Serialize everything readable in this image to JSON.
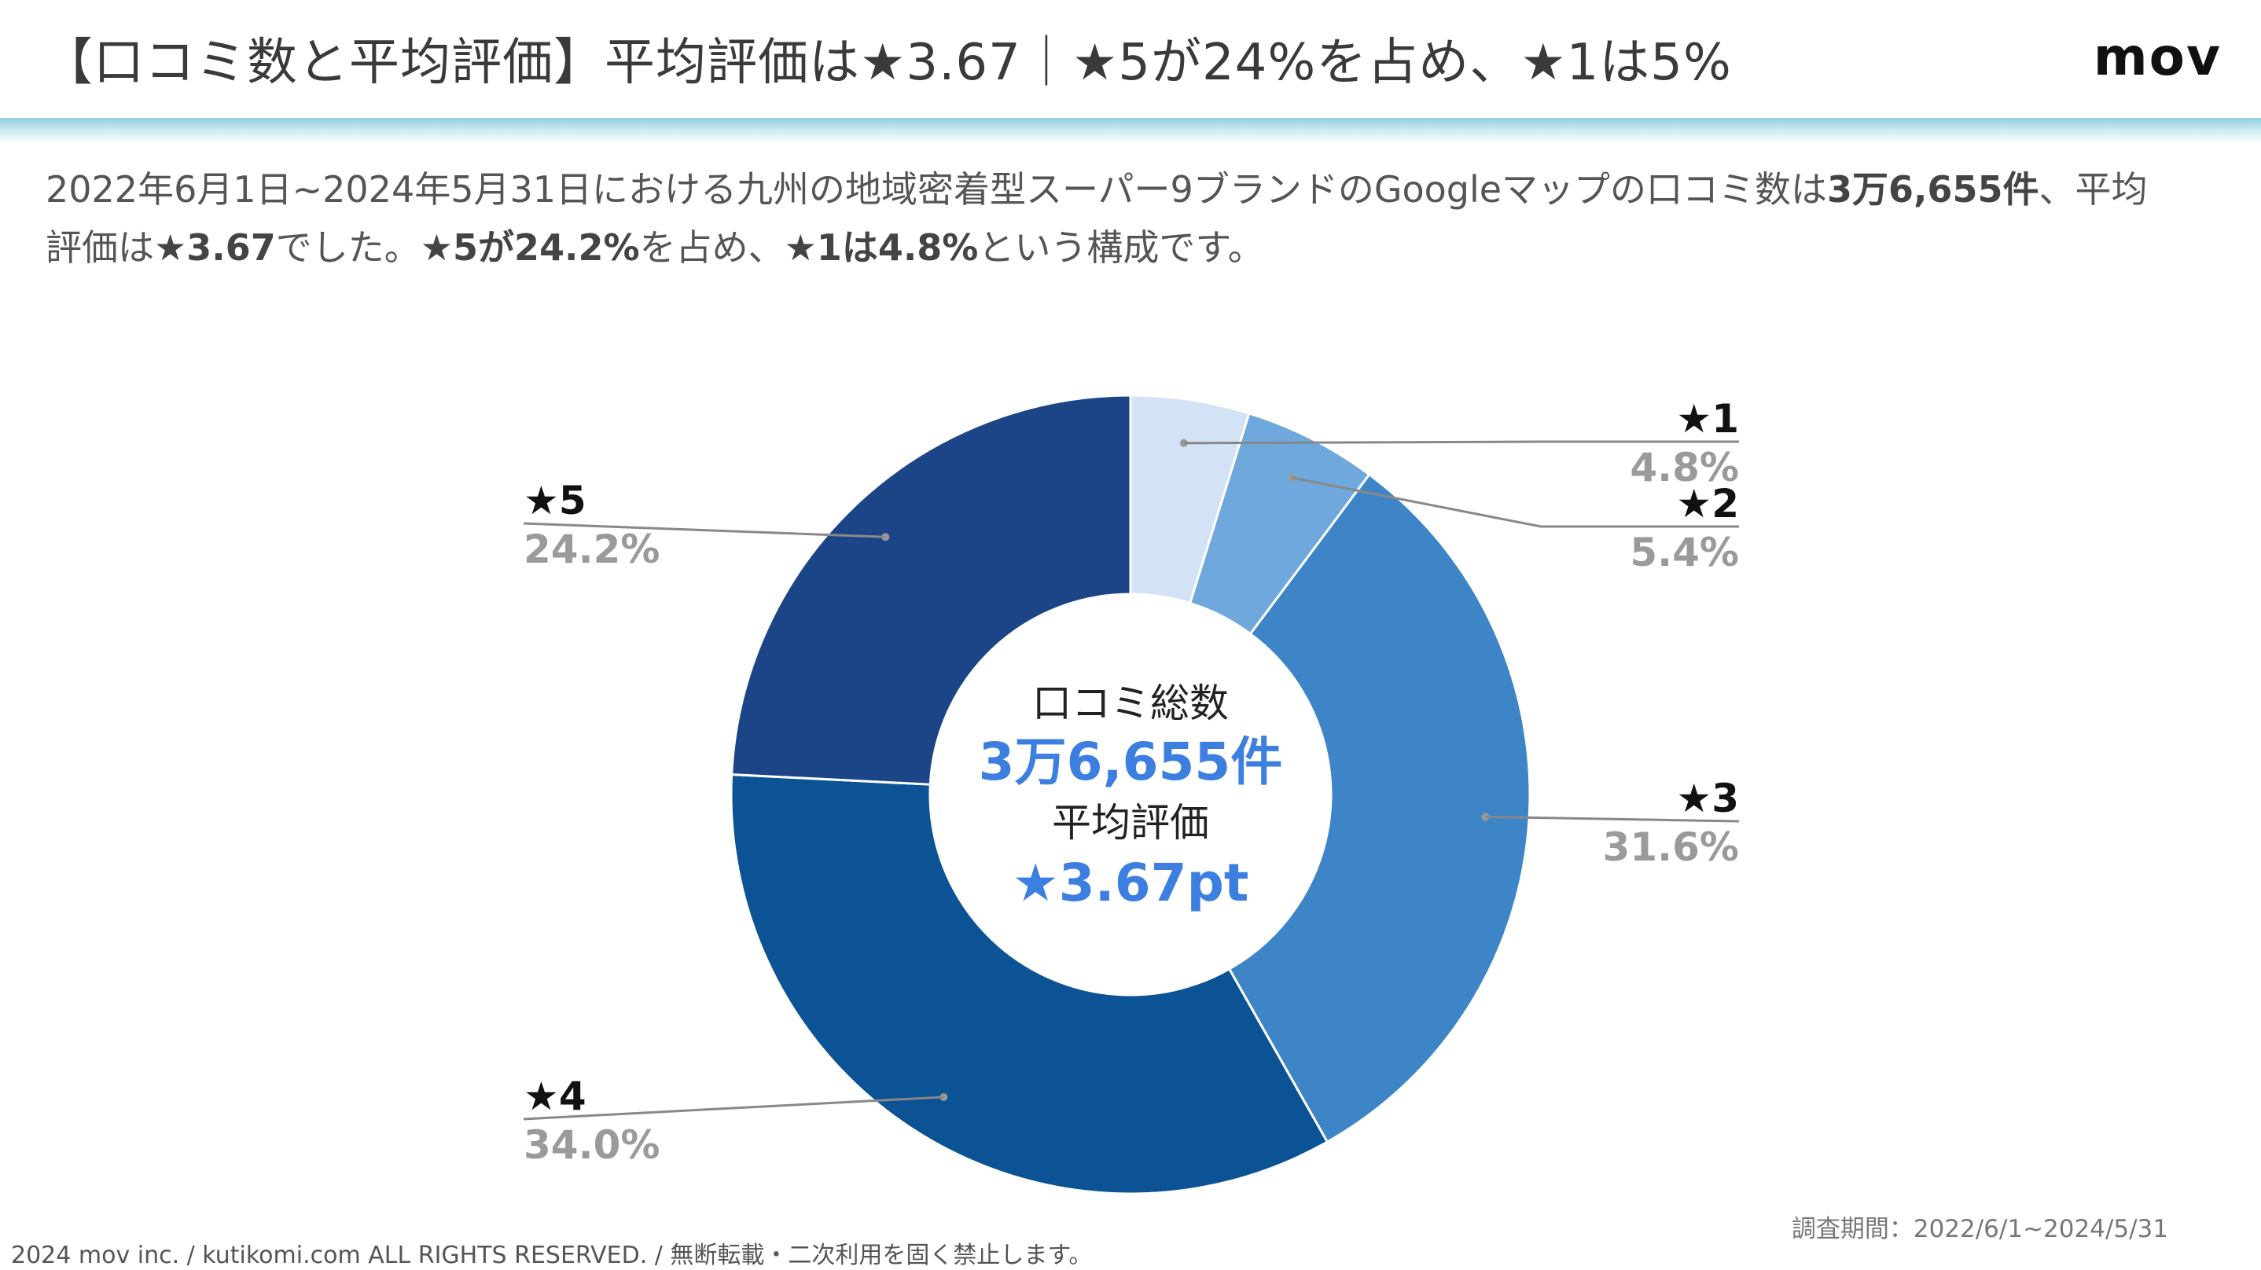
{
  "header": {
    "title": "【口コミ数と平均評価】平均評価は★3.67｜★5が24%を占め、★1は5%",
    "logo": "mov"
  },
  "description": {
    "part1": "2022年6月1日~2024年5月31日における九州の地域密着型スーパー9ブランドのGoogleマップの口コミ数は",
    "bold1": "3万6,655件",
    "part2": "、平均評価は",
    "bold2": "★3.67",
    "part3": "でした。",
    "bold3": "★5が24.2%",
    "part4": "を占め、",
    "bold4": "★1は4.8%",
    "part5": "という構成です。"
  },
  "colors": {
    "star1": "#d3e2f4",
    "star2": "#6fa8dc",
    "star3": "#3d85c6",
    "star4": "#0b5394",
    "star5": "#1c4587",
    "accent": "#3c7fe0",
    "header_bar": "#8fd0dc"
  },
  "chart_data": {
    "type": "pie",
    "variant": "donut",
    "categories": [
      "★1",
      "★2",
      "★3",
      "★4",
      "★5"
    ],
    "values": [
      4.8,
      5.4,
      31.6,
      34.0,
      24.2
    ],
    "value_labels": [
      "4.8%",
      "5.4%",
      "31.6%",
      "34.0%",
      "24.2%"
    ],
    "unit": "%",
    "center": {
      "label1": "口コミ総数",
      "value1": "3万6,655件",
      "label2": "平均評価",
      "value2": "★3.67pt"
    }
  },
  "footer": {
    "period": "調査期間：2022/6/1~2024/5/31",
    "copyright": "2024 mov inc. / kutikomi.com ALL RIGHTS RESERVED. / 無断転載・二次利用を固く禁止します。"
  }
}
